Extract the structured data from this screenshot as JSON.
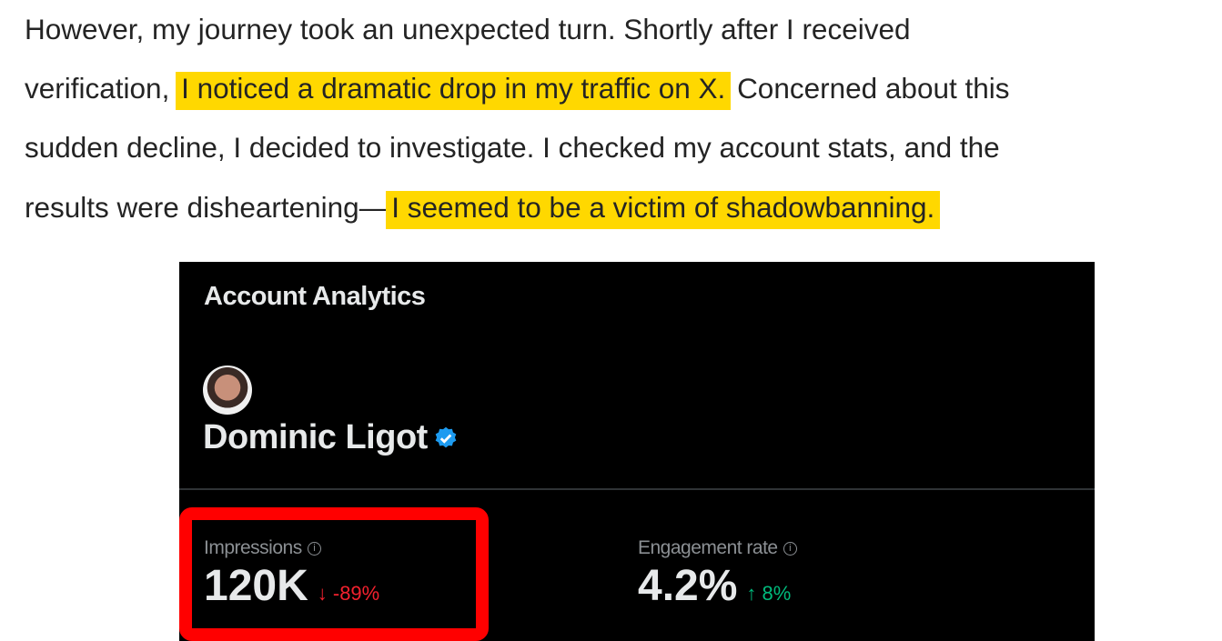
{
  "article": {
    "line1": "However, my journey took an unexpected turn. Shortly after I received",
    "line2_pre": "verification,",
    "line2_highlight": "I noticed a dramatic drop in my traffic on X.",
    "line2_post": "Concerned about this",
    "line3": "sudden decline, I decided to investigate. I checked my account stats, and the",
    "line4_pre": "results were disheartening—",
    "line4_highlight": "I seemed to be a victim of shadowbanning."
  },
  "colors": {
    "highlight": "#ffd800",
    "annotation_box": "#ff0000",
    "negative": "#f4212e",
    "positive": "#00ba7c",
    "verified": "#1d9bf0"
  },
  "analytics": {
    "title": "Account Analytics",
    "user_name": "Dominic Ligot",
    "verified_icon": "verified-badge-icon",
    "metrics": [
      {
        "label": "Impressions",
        "value": "120K",
        "arrow": "↓",
        "delta": "-89%"
      },
      {
        "label": "Engagement rate",
        "value": "4.2%",
        "arrow": "↑",
        "delta": "8%"
      }
    ],
    "info_glyph": "i"
  }
}
